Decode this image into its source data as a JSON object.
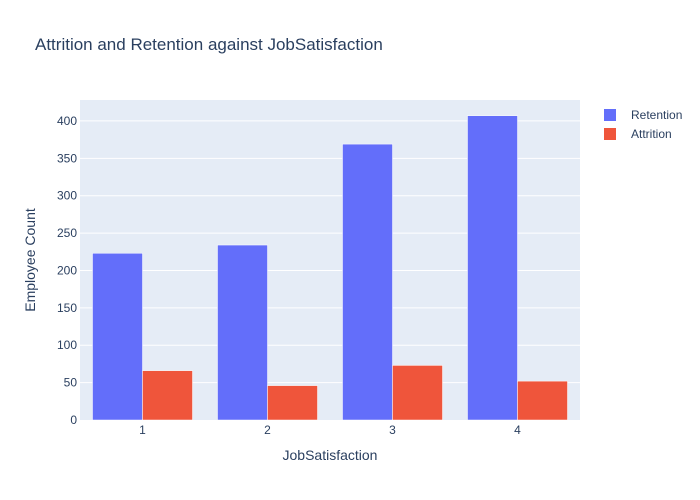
{
  "chart_data": {
    "type": "bar",
    "title": "Attrition and Retention against JobSatisfaction",
    "xlabel": "JobSatisfaction",
    "ylabel": "Employee Count",
    "categories": [
      "1",
      "2",
      "3",
      "4"
    ],
    "series": [
      {
        "name": "Retention",
        "values": [
          223,
          234,
          369,
          407
        ],
        "color": "#636efa"
      },
      {
        "name": "Attrition",
        "values": [
          66,
          46,
          73,
          52
        ],
        "color": "#ef553b"
      }
    ],
    "ylim": [
      0,
      428
    ],
    "yticks": [
      0,
      50,
      100,
      150,
      200,
      250,
      300,
      350,
      400
    ],
    "grid": true,
    "legend_position": "top-right",
    "plot_background": "#e5ecf6"
  }
}
